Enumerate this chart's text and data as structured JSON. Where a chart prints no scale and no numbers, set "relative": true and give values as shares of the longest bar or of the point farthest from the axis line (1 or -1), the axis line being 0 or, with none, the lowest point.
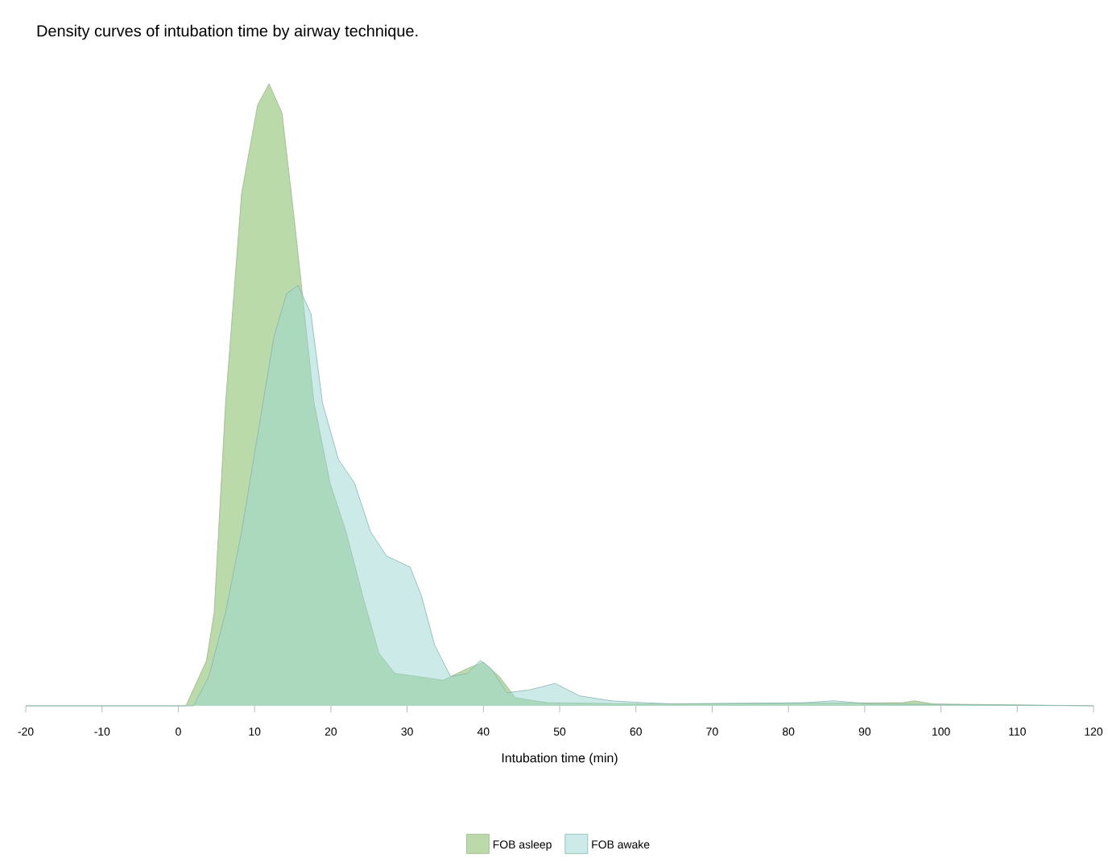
{
  "chart_data": {
    "type": "area",
    "title": "Density curves of intubation time by airway technique.",
    "xlabel": "Intubation time (min)",
    "xlim": [
      -20,
      120
    ],
    "xticks": [
      -20,
      -10,
      0,
      10,
      20,
      30,
      40,
      50,
      60,
      70,
      80,
      90,
      100,
      110,
      120
    ],
    "relative": true,
    "legend": "bottom",
    "series": [
      {
        "name": "FOB asleep",
        "color": "#b3d6a0",
        "x": [
          -20,
          0,
          1,
          3.7,
          4.7,
          6.2,
          8.3,
          10.4,
          11.9,
          13.6,
          15.3,
          17.8,
          19.9,
          22,
          24.2,
          26.3,
          28.4,
          31.5,
          34.7,
          37.9,
          40,
          42.1,
          44.2,
          48.4,
          61,
          95,
          96.5,
          99,
          120
        ],
        "values": [
          0,
          0,
          0,
          0.073,
          0.15,
          0.487,
          0.824,
          0.966,
          1,
          0.953,
          0.772,
          0.487,
          0.358,
          0.28,
          0.176,
          0.085,
          0.052,
          0.047,
          0.041,
          0.06,
          0.07,
          0.047,
          0.013,
          0.005,
          0.003,
          0.005,
          0.008,
          0.003,
          0
        ]
      },
      {
        "name": "FOB awake",
        "color": "#9ad7d2",
        "x": [
          -20,
          2,
          4,
          6.2,
          8.3,
          10.4,
          12.5,
          14.2,
          15.7,
          17.4,
          18.9,
          21,
          23.1,
          25.2,
          27.3,
          30.4,
          31.9,
          33.6,
          35.7,
          37.9,
          39.6,
          41,
          43.1,
          46.2,
          49.4,
          52.6,
          56.8,
          61,
          65.2,
          82,
          86,
          90.6,
          120
        ],
        "values": [
          0,
          0,
          0.047,
          0.15,
          0.28,
          0.435,
          0.591,
          0.663,
          0.676,
          0.63,
          0.487,
          0.396,
          0.358,
          0.28,
          0.241,
          0.223,
          0.176,
          0.098,
          0.047,
          0.052,
          0.073,
          0.06,
          0.021,
          0.026,
          0.036,
          0.016,
          0.008,
          0.005,
          0.003,
          0.005,
          0.008,
          0.003,
          0
        ]
      }
    ]
  }
}
